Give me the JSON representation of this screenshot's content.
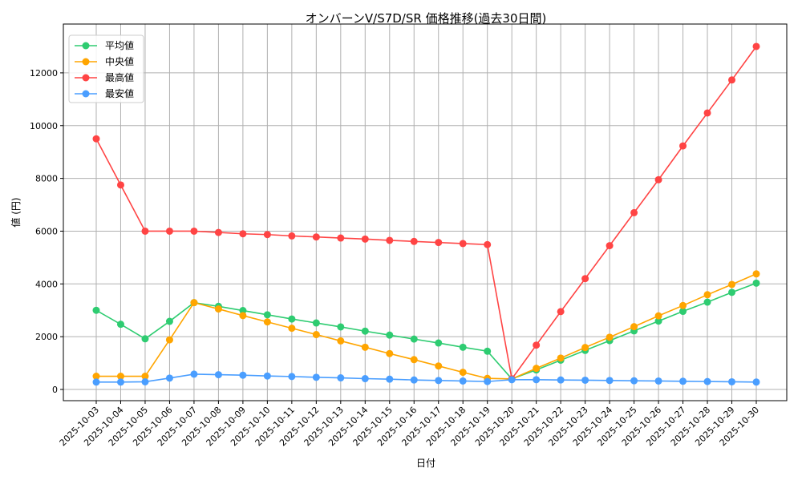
{
  "chart_data": {
    "type": "line",
    "title": "オンバーンV/S7D/SR 価格推移(過去30日間)",
    "xlabel": "日付",
    "ylabel": "値 (円)",
    "ylim": [
      -425,
      13850
    ],
    "yticks": [
      0,
      2000,
      4000,
      6000,
      8000,
      10000,
      12000
    ],
    "grid": true,
    "legend_position": "top-left",
    "x": [
      "2025-10-03",
      "2025-10-04",
      "2025-10-05",
      "2025-10-06",
      "2025-10-07",
      "2025-10-08",
      "2025-10-09",
      "2025-10-10",
      "2025-10-11",
      "2025-10-12",
      "2025-10-13",
      "2025-10-14",
      "2025-10-15",
      "2025-10-16",
      "2025-10-17",
      "2025-10-18",
      "2025-10-19",
      "2025-10-20",
      "2025-10-21",
      "2025-10-22",
      "2025-10-23",
      "2025-10-24",
      "2025-10-25",
      "2025-10-26",
      "2025-10-27",
      "2025-10-28",
      "2025-10-29",
      "2025-10-30"
    ],
    "series": [
      {
        "name": "平均値",
        "color": "#2ecc71",
        "values": [
          3000,
          2470,
          1920,
          2580,
          3290,
          3150,
          2990,
          2830,
          2670,
          2520,
          2370,
          2210,
          2060,
          1910,
          1760,
          1600,
          1450,
          400,
          740,
          1110,
          1480,
          1850,
          2220,
          2590,
          2960,
          3310,
          3680,
          4030
        ]
      },
      {
        "name": "中央値",
        "color": "#ffa500",
        "values": [
          500,
          500,
          500,
          1880,
          3290,
          3050,
          2800,
          2560,
          2320,
          2080,
          1840,
          1600,
          1360,
          1130,
          890,
          650,
          420,
          400,
          800,
          1190,
          1590,
          1980,
          2380,
          2790,
          3180,
          3590,
          3980,
          4380
        ]
      },
      {
        "name": "最高値",
        "color": "#ff4444",
        "values": [
          9500,
          7750,
          6000,
          6000,
          6000,
          5950,
          5900,
          5870,
          5820,
          5780,
          5740,
          5700,
          5650,
          5610,
          5570,
          5530,
          5490,
          400,
          1680,
          2950,
          4200,
          5450,
          6700,
          7950,
          9230,
          10480,
          11730,
          13000
        ]
      },
      {
        "name": "最安値",
        "color": "#4a9eff",
        "values": [
          280,
          280,
          290,
          430,
          580,
          560,
          540,
          510,
          490,
          460,
          440,
          410,
          390,
          360,
          340,
          320,
          300,
          370,
          370,
          360,
          350,
          340,
          330,
          320,
          310,
          300,
          290,
          280
        ]
      }
    ]
  }
}
